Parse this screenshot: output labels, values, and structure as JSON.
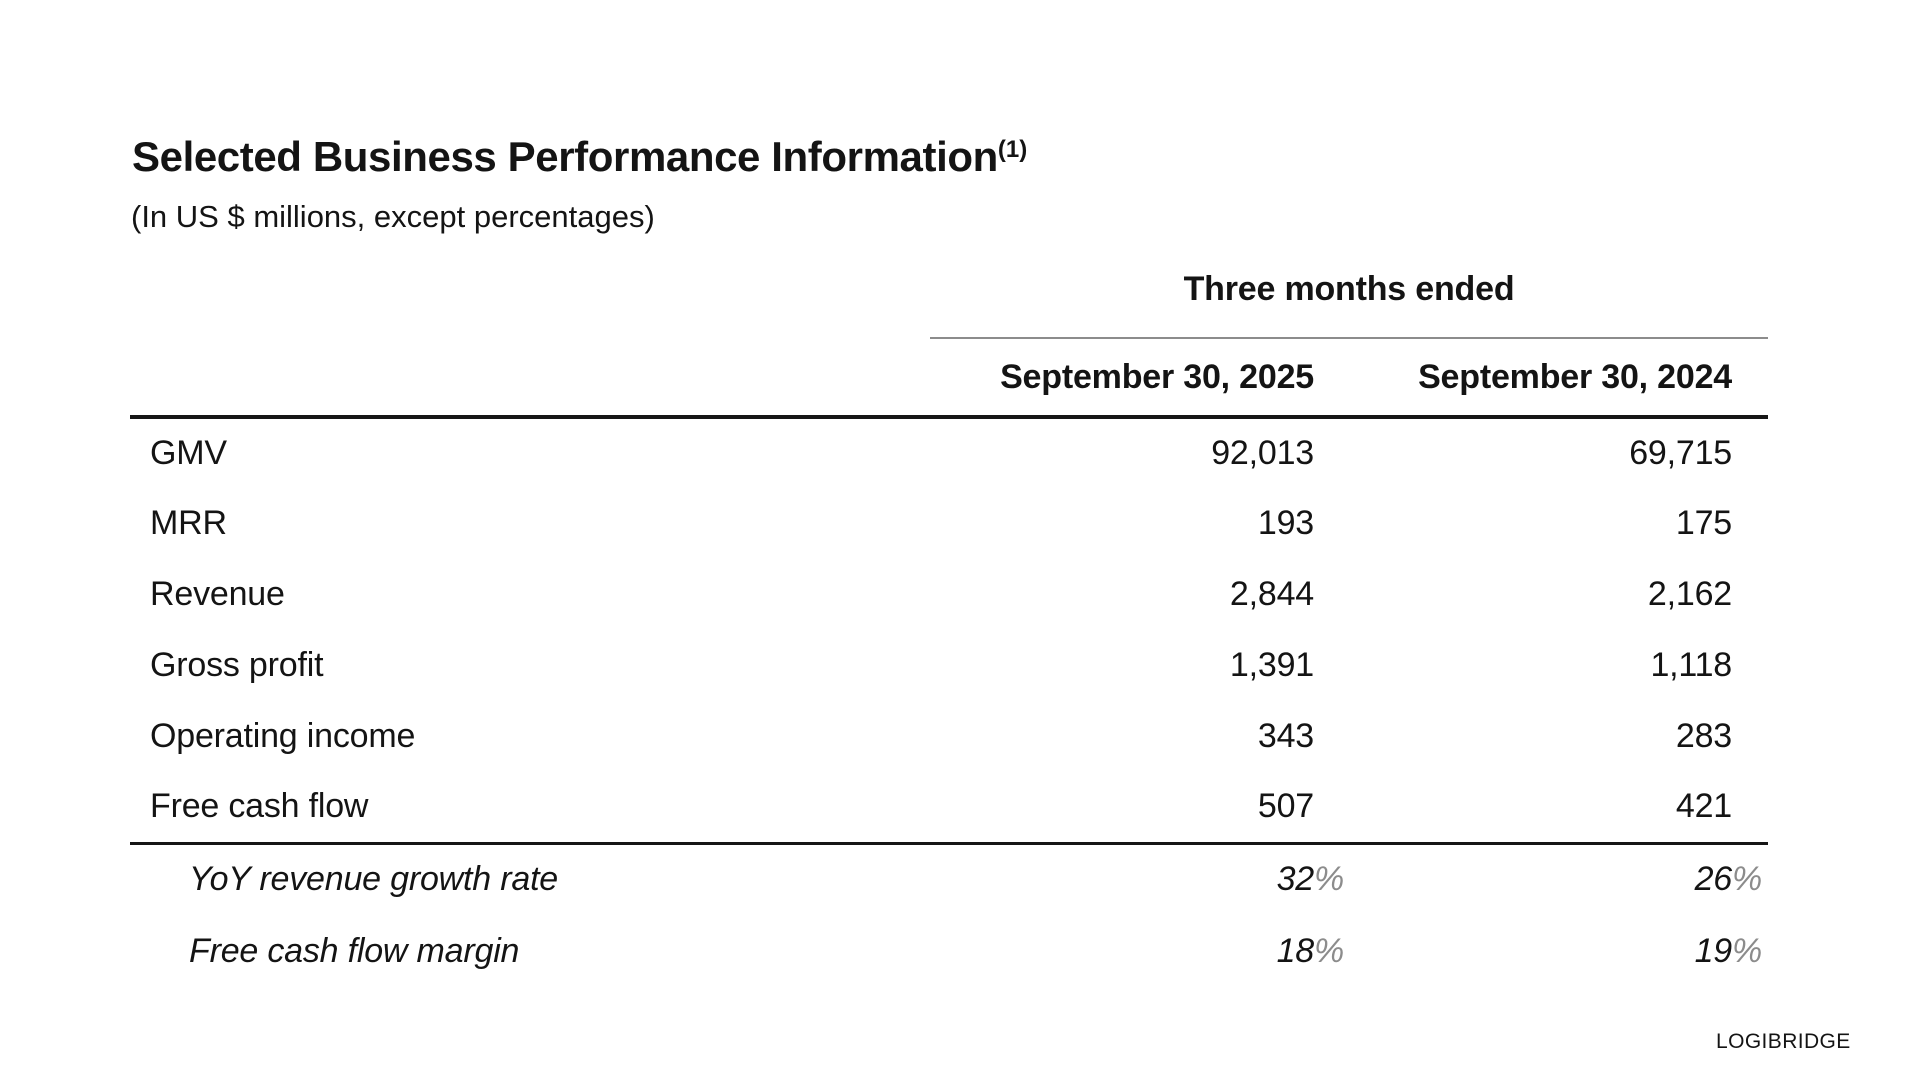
{
  "page": {
    "title": "Selected Business Performance Information",
    "title_footnote": "(1)",
    "subtitle": "(In US $ millions, except percentages)",
    "brand": "LOGIBRIDGE"
  },
  "table": {
    "period_header": "Three months ended",
    "columns": [
      "September 30, 2025",
      "September 30, 2024"
    ],
    "rows": [
      {
        "label": "GMV",
        "v1": "92,013",
        "v2": "69,715"
      },
      {
        "label": "MRR",
        "v1": "193",
        "v2": "175"
      },
      {
        "label": "Revenue",
        "v1": "2,844",
        "v2": "2,162"
      },
      {
        "label": "Gross profit",
        "v1": "1,391",
        "v2": "1,118"
      },
      {
        "label": "Operating income",
        "v1": "343",
        "v2": "283"
      },
      {
        "label": "Free cash flow",
        "v1": "507",
        "v2": "421"
      }
    ],
    "ratio_rows": [
      {
        "label": "YoY revenue growth rate",
        "v1": "32",
        "v2": "26",
        "unit": "%"
      },
      {
        "label": "Free cash flow margin",
        "v1": "18",
        "v2": "19",
        "unit": "%"
      }
    ]
  },
  "colors": {
    "text": "#141414",
    "muted_percent": "#8c8c8c",
    "rule_heavy": "#161616",
    "rule_light": "#8c8c8c",
    "background": "#ffffff"
  }
}
